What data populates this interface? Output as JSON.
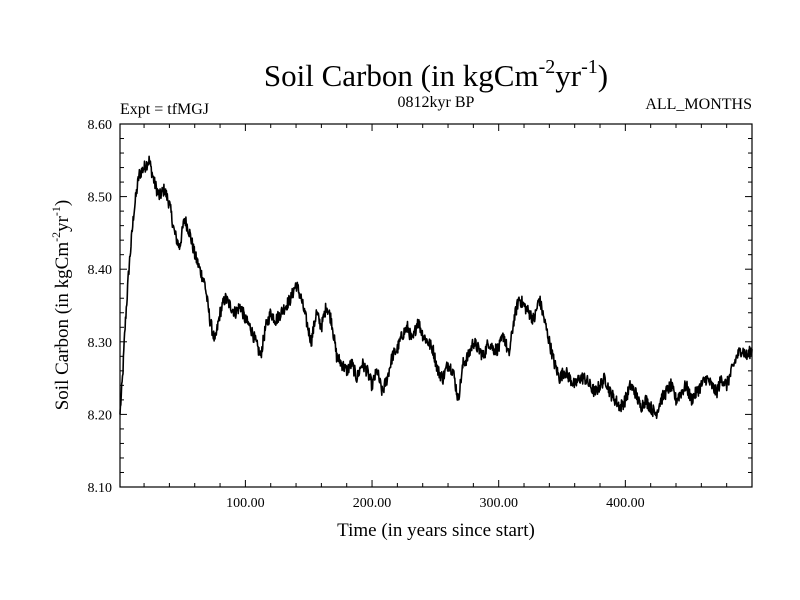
{
  "chart_data": {
    "type": "line",
    "title": {
      "text": "Soil Carbon (in kgCm",
      "sup1": "-2",
      "mid": "yr",
      "sup2": "-1",
      "end": ")"
    },
    "left_label": "Expt = tfMGJ",
    "center_label": "0812kyr BP",
    "right_label": "ALL_MONTHS",
    "xlabel": "Time (in years since start)",
    "ylabel": {
      "text": "Soil Carbon (in kgCm",
      "sup1": "-2",
      "mid": "yr",
      "sup2": "-1",
      "end": ")"
    },
    "xlim": [
      1,
      500
    ],
    "ylim": [
      8.1,
      8.6
    ],
    "x_ticks": [
      100,
      200,
      300,
      400
    ],
    "x_tick_labels": [
      "100.00",
      "200.00",
      "300.00",
      "400.00"
    ],
    "y_ticks": [
      8.1,
      8.2,
      8.3,
      8.4,
      8.5,
      8.6
    ],
    "y_tick_labels": [
      "8.10",
      "8.20",
      "8.30",
      "8.40",
      "8.50",
      "8.60"
    ],
    "grid": false,
    "series": [
      {
        "name": "Soil Carbon",
        "color": "#000000",
        "x": [
          1,
          3,
          5,
          8,
          12,
          16,
          20,
          24,
          28,
          32,
          36,
          40,
          44,
          48,
          52,
          56,
          60,
          64,
          68,
          72,
          76,
          80,
          84,
          88,
          92,
          96,
          100,
          104,
          108,
          112,
          116,
          120,
          124,
          128,
          132,
          136,
          140,
          144,
          148,
          152,
          156,
          160,
          164,
          168,
          172,
          176,
          180,
          184,
          188,
          192,
          196,
          200,
          204,
          208,
          212,
          216,
          220,
          224,
          228,
          232,
          236,
          240,
          244,
          248,
          252,
          256,
          260,
          264,
          268,
          272,
          276,
          280,
          284,
          288,
          292,
          296,
          300,
          304,
          308,
          312,
          316,
          320,
          324,
          328,
          332,
          336,
          340,
          344,
          348,
          352,
          356,
          360,
          364,
          368,
          372,
          376,
          380,
          384,
          388,
          392,
          396,
          400,
          404,
          408,
          412,
          416,
          420,
          424,
          428,
          432,
          436,
          440,
          444,
          448,
          452,
          456,
          460,
          464,
          468,
          472,
          476,
          480,
          484,
          488,
          492,
          496,
          500
        ],
        "values": [
          8.2,
          8.25,
          8.32,
          8.4,
          8.48,
          8.53,
          8.54,
          8.55,
          8.52,
          8.5,
          8.51,
          8.49,
          8.45,
          8.43,
          8.47,
          8.45,
          8.42,
          8.4,
          8.38,
          8.33,
          8.3,
          8.34,
          8.36,
          8.35,
          8.34,
          8.35,
          8.33,
          8.32,
          8.3,
          8.28,
          8.32,
          8.34,
          8.33,
          8.34,
          8.35,
          8.36,
          8.38,
          8.36,
          8.33,
          8.3,
          8.34,
          8.32,
          8.35,
          8.33,
          8.28,
          8.27,
          8.26,
          8.27,
          8.25,
          8.27,
          8.26,
          8.24,
          8.26,
          8.23,
          8.25,
          8.28,
          8.29,
          8.31,
          8.32,
          8.3,
          8.33,
          8.31,
          8.3,
          8.29,
          8.26,
          8.25,
          8.27,
          8.26,
          8.22,
          8.27,
          8.28,
          8.3,
          8.29,
          8.28,
          8.3,
          8.29,
          8.29,
          8.31,
          8.28,
          8.33,
          8.36,
          8.35,
          8.34,
          8.33,
          8.36,
          8.33,
          8.3,
          8.27,
          8.25,
          8.26,
          8.25,
          8.24,
          8.25,
          8.25,
          8.24,
          8.23,
          8.24,
          8.25,
          8.23,
          8.22,
          8.21,
          8.22,
          8.24,
          8.23,
          8.21,
          8.22,
          8.21,
          8.2,
          8.22,
          8.23,
          8.24,
          8.22,
          8.23,
          8.24,
          8.22,
          8.23,
          8.24,
          8.25,
          8.24,
          8.23,
          8.25,
          8.24,
          8.26,
          8.28,
          8.29,
          8.28,
          8.29
        ]
      }
    ]
  }
}
